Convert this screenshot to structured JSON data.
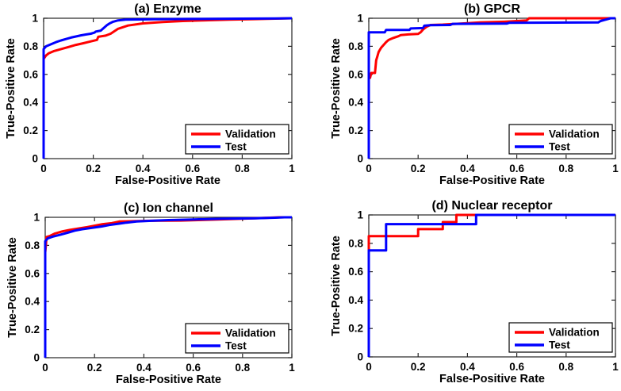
{
  "figure": {
    "background": "#ffffff",
    "axis_color": "#262626",
    "text_color": "#000000",
    "legend_border_color": "#000000",
    "validation_color": "#ff0000",
    "test_color": "#0000ff"
  },
  "legend": {
    "validation_label": "Validation",
    "test_label": "Test",
    "position": "lower right"
  },
  "chart_data": [
    {
      "type": "line",
      "title": "(a) Enzyme",
      "xlabel": "False-Positive Rate",
      "ylabel": "True-Positive Rate",
      "xlim": [
        0,
        1
      ],
      "ylim": [
        0,
        1
      ],
      "xticks": [
        0,
        0.2,
        0.4,
        0.6,
        0.8,
        1
      ],
      "yticks": [
        0,
        0.2,
        0.4,
        0.6,
        0.8,
        1
      ],
      "xtick_labels": [
        "0",
        "0.2",
        "0.4",
        "0.6",
        "0.8",
        "1"
      ],
      "ytick_labels": [
        "0",
        "0.2",
        "0.4",
        "0.6",
        "0.8",
        "1"
      ],
      "grid": false,
      "legend_position": "lower right",
      "series": [
        {
          "name": "Validation",
          "color": "#ff0000",
          "points": [
            [
              0,
              0
            ],
            [
              0,
              0.71
            ],
            [
              0.01,
              0.735
            ],
            [
              0.02,
              0.75
            ],
            [
              0.04,
              0.765
            ],
            [
              0.06,
              0.775
            ],
            [
              0.08,
              0.785
            ],
            [
              0.1,
              0.795
            ],
            [
              0.13,
              0.81
            ],
            [
              0.16,
              0.822
            ],
            [
              0.19,
              0.835
            ],
            [
              0.215,
              0.846
            ],
            [
              0.22,
              0.868
            ],
            [
              0.25,
              0.876
            ],
            [
              0.27,
              0.89
            ],
            [
              0.3,
              0.925
            ],
            [
              0.34,
              0.948
            ],
            [
              0.4,
              0.963
            ],
            [
              0.48,
              0.973
            ],
            [
              0.56,
              0.98
            ],
            [
              0.64,
              0.985
            ],
            [
              0.75,
              0.99
            ],
            [
              0.85,
              0.994
            ],
            [
              0.95,
              0.998
            ],
            [
              1,
              1
            ]
          ]
        },
        {
          "name": "Test",
          "color": "#0000ff",
          "points": [
            [
              0,
              0
            ],
            [
              0,
              0.78
            ],
            [
              0.01,
              0.8
            ],
            [
              0.03,
              0.815
            ],
            [
              0.05,
              0.83
            ],
            [
              0.07,
              0.842
            ],
            [
              0.09,
              0.852
            ],
            [
              0.11,
              0.862
            ],
            [
              0.13,
              0.87
            ],
            [
              0.15,
              0.878
            ],
            [
              0.17,
              0.884
            ],
            [
              0.19,
              0.89
            ],
            [
              0.205,
              0.898
            ],
            [
              0.21,
              0.905
            ],
            [
              0.23,
              0.912
            ],
            [
              0.245,
              0.935
            ],
            [
              0.255,
              0.95
            ],
            [
              0.265,
              0.962
            ],
            [
              0.28,
              0.975
            ],
            [
              0.3,
              0.985
            ],
            [
              0.33,
              0.99
            ],
            [
              0.45,
              0.993
            ],
            [
              0.6,
              0.995
            ],
            [
              0.8,
              0.997
            ],
            [
              0.95,
              0.999
            ],
            [
              1,
              1
            ]
          ]
        }
      ]
    },
    {
      "type": "line",
      "title": "(b) GPCR",
      "xlabel": "False-Positive Rate",
      "ylabel": "True-Positive Rate",
      "xlim": [
        0,
        1
      ],
      "ylim": [
        0,
        1
      ],
      "xticks": [
        0,
        0.2,
        0.4,
        0.6,
        0.8,
        1
      ],
      "yticks": [
        0,
        0.2,
        0.4,
        0.6,
        0.8,
        1
      ],
      "xtick_labels": [
        "0",
        "0.2",
        "0.4",
        "0.6",
        "0.8",
        "1"
      ],
      "ytick_labels": [
        "0",
        "0.2",
        "0.4",
        "0.6",
        "0.8",
        "1"
      ],
      "grid": false,
      "legend_position": "lower right",
      "series": [
        {
          "name": "Validation",
          "color": "#ff0000",
          "points": [
            [
              0,
              0
            ],
            [
              0,
              0.575
            ],
            [
              0.005,
              0.575
            ],
            [
              0.01,
              0.61
            ],
            [
              0.025,
              0.61
            ],
            [
              0.03,
              0.7
            ],
            [
              0.035,
              0.73
            ],
            [
              0.04,
              0.76
            ],
            [
              0.05,
              0.79
            ],
            [
              0.06,
              0.81
            ],
            [
              0.07,
              0.83
            ],
            [
              0.08,
              0.845
            ],
            [
              0.1,
              0.86
            ],
            [
              0.12,
              0.872
            ],
            [
              0.13,
              0.88
            ],
            [
              0.16,
              0.885
            ],
            [
              0.2,
              0.888
            ],
            [
              0.21,
              0.9
            ],
            [
              0.22,
              0.92
            ],
            [
              0.235,
              0.94
            ],
            [
              0.25,
              0.952
            ],
            [
              0.3,
              0.955
            ],
            [
              0.35,
              0.96
            ],
            [
              0.4,
              0.965
            ],
            [
              0.45,
              0.97
            ],
            [
              0.55,
              0.975
            ],
            [
              0.6,
              0.98
            ],
            [
              0.64,
              0.985
            ],
            [
              0.65,
              1
            ],
            [
              1,
              1
            ]
          ]
        },
        {
          "name": "Test",
          "color": "#0000ff",
          "points": [
            [
              0,
              0
            ],
            [
              0,
              0.9
            ],
            [
              0.065,
              0.9
            ],
            [
              0.07,
              0.917
            ],
            [
              0.165,
              0.917
            ],
            [
              0.17,
              0.927
            ],
            [
              0.22,
              0.93
            ],
            [
              0.225,
              0.947
            ],
            [
              0.25,
              0.95
            ],
            [
              0.33,
              0.952
            ],
            [
              0.34,
              0.96
            ],
            [
              0.56,
              0.962
            ],
            [
              0.57,
              0.968
            ],
            [
              0.93,
              0.97
            ],
            [
              0.94,
              0.98
            ],
            [
              0.96,
              0.99
            ],
            [
              0.98,
              1
            ],
            [
              1,
              1
            ]
          ]
        }
      ]
    },
    {
      "type": "line",
      "title": "(c) Ion channel",
      "xlabel": "False-Positive Rate",
      "ylabel": "True-Positive Rate",
      "xlim": [
        0,
        1
      ],
      "ylim": [
        0,
        1
      ],
      "xticks": [
        0,
        0.2,
        0.4,
        0.6,
        0.8,
        1
      ],
      "yticks": [
        0,
        0.2,
        0.4,
        0.6,
        0.8,
        1
      ],
      "xtick_labels": [
        "0",
        "0.2",
        "0.4",
        "0.6",
        "0.8",
        "1"
      ],
      "ytick_labels": [
        "0",
        "0.2",
        "0.4",
        "0.6",
        "0.8",
        "1"
      ],
      "grid": false,
      "legend_position": "lower right",
      "series": [
        {
          "name": "Validation",
          "color": "#ff0000",
          "points": [
            [
              0,
              0
            ],
            [
              0,
              0.75
            ],
            [
              0.003,
              0.8
            ],
            [
              0.005,
              0.86
            ],
            [
              0.02,
              0.868
            ],
            [
              0.04,
              0.885
            ],
            [
              0.07,
              0.9
            ],
            [
              0.1,
              0.91
            ],
            [
              0.14,
              0.922
            ],
            [
              0.17,
              0.93
            ],
            [
              0.2,
              0.94
            ],
            [
              0.23,
              0.95
            ],
            [
              0.27,
              0.958
            ],
            [
              0.3,
              0.97
            ],
            [
              0.34,
              0.972
            ],
            [
              0.42,
              0.975
            ],
            [
              0.55,
              0.977
            ],
            [
              0.62,
              0.98
            ],
            [
              0.7,
              0.985
            ],
            [
              0.8,
              0.99
            ],
            [
              0.88,
              0.995
            ],
            [
              0.95,
              1
            ],
            [
              1,
              1
            ]
          ]
        },
        {
          "name": "Test",
          "color": "#0000ff",
          "points": [
            [
              0,
              0
            ],
            [
              0,
              0.83
            ],
            [
              0.01,
              0.85
            ],
            [
              0.03,
              0.862
            ],
            [
              0.06,
              0.875
            ],
            [
              0.09,
              0.89
            ],
            [
              0.12,
              0.905
            ],
            [
              0.15,
              0.915
            ],
            [
              0.19,
              0.925
            ],
            [
              0.23,
              0.935
            ],
            [
              0.26,
              0.945
            ],
            [
              0.3,
              0.955
            ],
            [
              0.33,
              0.962
            ],
            [
              0.37,
              0.97
            ],
            [
              0.43,
              0.975
            ],
            [
              0.5,
              0.98
            ],
            [
              0.6,
              0.985
            ],
            [
              0.72,
              0.99
            ],
            [
              0.85,
              0.993
            ],
            [
              0.93,
              0.997
            ],
            [
              0.97,
              1
            ],
            [
              1,
              1
            ]
          ]
        }
      ]
    },
    {
      "type": "line",
      "title": "(d) Nuclear receptor",
      "xlabel": "False-Positive Rate",
      "ylabel": "True-Positive Rate",
      "xlim": [
        0,
        1
      ],
      "ylim": [
        0,
        1
      ],
      "xticks": [
        0,
        0.2,
        0.4,
        0.6,
        0.8,
        1
      ],
      "yticks": [
        0,
        0.2,
        0.4,
        0.6,
        0.8,
        1
      ],
      "xtick_labels": [
        "0",
        "0.2",
        "0.4",
        "0.6",
        "0.8",
        "1"
      ],
      "ytick_labels": [
        "0",
        "0.2",
        "0.4",
        "0.6",
        "0.8",
        "1"
      ],
      "grid": false,
      "legend_position": "lower right",
      "series": [
        {
          "name": "Validation",
          "color": "#ff0000",
          "points": [
            [
              0,
              0
            ],
            [
              0,
              0.85
            ],
            [
              0.2,
              0.85
            ],
            [
              0.2,
              0.9
            ],
            [
              0.3,
              0.9
            ],
            [
              0.3,
              0.95
            ],
            [
              0.355,
              0.95
            ],
            [
              0.355,
              1
            ],
            [
              1,
              1
            ]
          ]
        },
        {
          "name": "Test",
          "color": "#0000ff",
          "points": [
            [
              0,
              0
            ],
            [
              0,
              0.75
            ],
            [
              0.07,
              0.75
            ],
            [
              0.07,
              0.935
            ],
            [
              0.435,
              0.935
            ],
            [
              0.435,
              1
            ],
            [
              1,
              1
            ]
          ]
        }
      ]
    }
  ]
}
